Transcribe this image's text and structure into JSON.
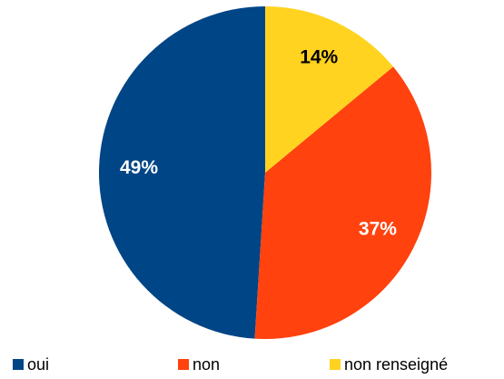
{
  "chart_data": {
    "type": "pie",
    "categories": [
      "oui",
      "non",
      "non renseigné"
    ],
    "values": [
      49,
      37,
      14
    ],
    "value_labels": [
      "49%",
      "37%",
      "14%"
    ],
    "colors": [
      "#004586",
      "#ff420e",
      "#ffd320"
    ],
    "label_colors": [
      "#ffffff",
      "#ffffff",
      "#000000"
    ],
    "legend": "bottom"
  }
}
